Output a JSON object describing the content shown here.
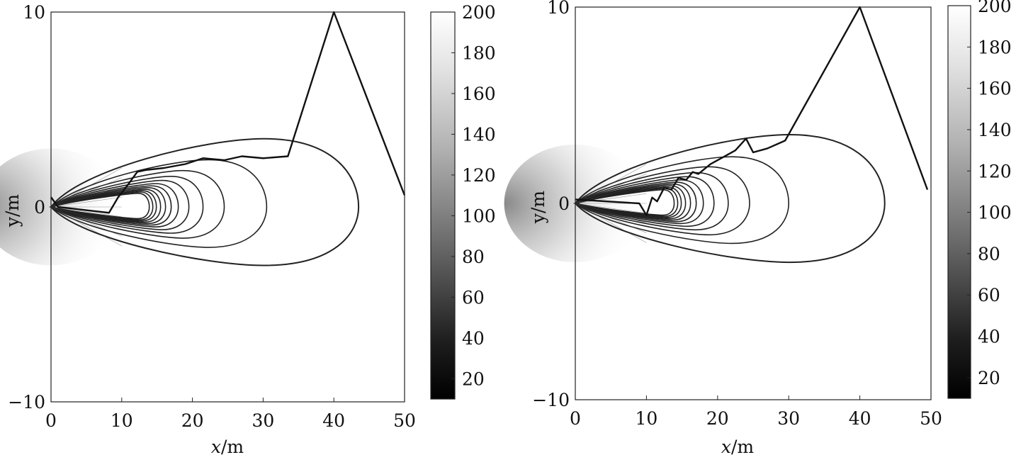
{
  "chart_data": [
    {
      "type": "contour",
      "xlabel_var": "x",
      "xlabel_unit": "/m",
      "ylabel": "y/m",
      "xlim": [
        0,
        50
      ],
      "ylim": [
        -10,
        10
      ],
      "x_ticks": [
        "0",
        "10",
        "20",
        "30",
        "40",
        "50"
      ],
      "y_ticks": [
        "10",
        "0",
        "−10"
      ],
      "colorbar": {
        "range": [
          10,
          200
        ],
        "ticks": [
          "200",
          "180",
          "160",
          "140",
          "120",
          "100",
          "80",
          "60",
          "40",
          "20"
        ],
        "colormap": "gray"
      },
      "contours": {
        "focus": [
          10,
          0
        ],
        "right_extents": [
          43.5,
          30.5,
          24.5,
          21.5,
          19.5,
          18,
          17,
          16.2,
          15.5,
          14.9,
          14.4,
          13.9
        ],
        "outer_top_y": 3.5,
        "outer_bottom_y": -3
      },
      "path": [
        [
          0,
          0.5
        ],
        [
          1,
          0
        ],
        [
          8.2,
          -0.3
        ],
        [
          9.5,
          0.5
        ],
        [
          11,
          1.2
        ],
        [
          12.2,
          1.8
        ],
        [
          13.5,
          1.9
        ],
        [
          16,
          2.0
        ],
        [
          19,
          2.2
        ],
        [
          21.5,
          2.5
        ],
        [
          24.5,
          2.4
        ],
        [
          27,
          2.6
        ],
        [
          30,
          2.5
        ],
        [
          33.5,
          2.6
        ],
        [
          40,
          10
        ],
        [
          50,
          0.6
        ]
      ]
    },
    {
      "type": "contour",
      "xlabel_var": "x",
      "xlabel_unit": "/m",
      "ylabel": "y/m",
      "xlim": [
        0,
        50
      ],
      "ylim": [
        -10,
        10
      ],
      "x_ticks": [
        "0",
        "10",
        "20",
        "30",
        "40",
        "50"
      ],
      "y_ticks": [
        "10",
        "0",
        "−10"
      ],
      "colorbar": {
        "range": [
          10,
          200
        ],
        "ticks": [
          "200",
          "180",
          "160",
          "140",
          "120",
          "100",
          "80",
          "60",
          "40",
          "20"
        ],
        "colormap": "gray"
      },
      "contours": {
        "focus": [
          10,
          0
        ],
        "right_extents": [
          43.5,
          30,
          24.5,
          21.5,
          19.5,
          18,
          17,
          16.2,
          15.5,
          14.9,
          14.4,
          13.9
        ],
        "outer_top_y": 3.5,
        "outer_bottom_y": -3
      },
      "path": [
        [
          0,
          0.2
        ],
        [
          9,
          0
        ],
        [
          10,
          -0.6
        ],
        [
          10.8,
          0.3
        ],
        [
          11.5,
          0.1
        ],
        [
          12.5,
          0.8
        ],
        [
          13.5,
          0.7
        ],
        [
          14.5,
          1.3
        ],
        [
          15.6,
          1.2
        ],
        [
          16.5,
          1.6
        ],
        [
          17.3,
          1.5
        ],
        [
          19,
          2.0
        ],
        [
          21,
          2.4
        ],
        [
          22.5,
          2.7
        ],
        [
          24,
          3.3
        ],
        [
          25,
          2.6
        ],
        [
          27,
          2.8
        ],
        [
          29.5,
          3.2
        ],
        [
          40,
          10
        ],
        [
          49.5,
          0.7
        ]
      ]
    }
  ]
}
